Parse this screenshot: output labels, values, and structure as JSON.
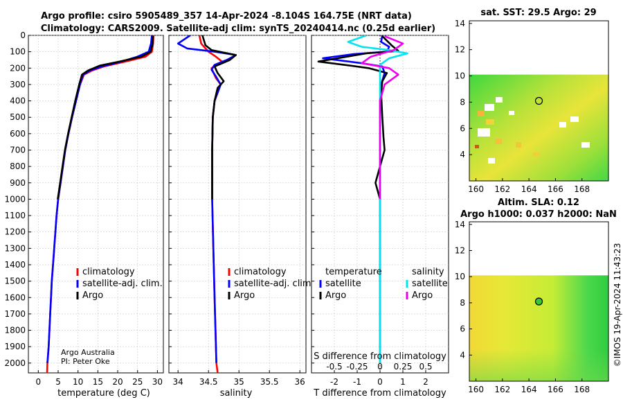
{
  "header": {
    "title_line1": "Argo profile: csiro 5905489_357 14-Apr-2024 -8.104S 164.75E (NRT data)",
    "title_line2": "Climatology: CARS2009. Satellite-adj clim: synTS_20240414.nc (0.25d earlier)",
    "credit_line1": "Argo Australia",
    "credit_line2": "PI: Peter Oke",
    "stamp": "©IMOS 19-Apr-2024 11:43:23"
  },
  "colors": {
    "climatology": "#ff0000",
    "satellite": "#0000ff",
    "argo": "#000000",
    "sat_salinity": "#00e5ee",
    "argo_salinity": "#ee00ee"
  },
  "chart_data": [
    {
      "type": "line",
      "name": "temperature",
      "xlabel": "temperature (deg C)",
      "ylabel": "",
      "xlim": [
        -2.5,
        31.5
      ],
      "ylim": [
        2060,
        0
      ],
      "xticks": [
        0,
        5,
        10,
        15,
        20,
        25,
        30
      ],
      "yticks": [
        0,
        100,
        200,
        300,
        400,
        500,
        600,
        700,
        800,
        900,
        1000,
        1100,
        1200,
        1300,
        1400,
        1500,
        1600,
        1700,
        1800,
        1900,
        2000
      ],
      "legend": [
        "climatology",
        "satellite-adj. clim.",
        "Argo"
      ],
      "series": [
        {
          "name": "climatology",
          "color": "#ff0000",
          "points": [
            [
              29.0,
              0
            ],
            [
              28.9,
              50
            ],
            [
              28.6,
              100
            ],
            [
              27.0,
              130
            ],
            [
              22.0,
              160
            ],
            [
              16.5,
              190
            ],
            [
              13.5,
              215
            ],
            [
              11.5,
              240
            ],
            [
              10.5,
              300
            ],
            [
              9.5,
              400
            ],
            [
              8.5,
              500
            ],
            [
              7.6,
              600
            ],
            [
              6.8,
              700
            ],
            [
              6.2,
              800
            ],
            [
              5.6,
              900
            ],
            [
              5.0,
              1000
            ],
            [
              4.6,
              1100
            ],
            [
              4.3,
              1200
            ],
            [
              4.0,
              1300
            ],
            [
              3.7,
              1400
            ],
            [
              3.4,
              1500
            ],
            [
              3.2,
              1600
            ],
            [
              3.0,
              1700
            ],
            [
              2.8,
              1800
            ],
            [
              2.6,
              1900
            ],
            [
              2.3,
              2000
            ],
            [
              2.2,
              2060
            ]
          ]
        },
        {
          "name": "satellite-adj. clim.",
          "color": "#0000ff",
          "points": [
            [
              28.6,
              0
            ],
            [
              28.4,
              50
            ],
            [
              27.8,
              100
            ],
            [
              25.0,
              130
            ],
            [
              21.0,
              160
            ],
            [
              16.0,
              190
            ],
            [
              13.0,
              215
            ],
            [
              11.3,
              240
            ],
            [
              10.5,
              300
            ],
            [
              9.5,
              400
            ],
            [
              8.5,
              500
            ],
            [
              7.6,
              600
            ],
            [
              6.8,
              700
            ],
            [
              6.2,
              800
            ],
            [
              5.6,
              900
            ],
            [
              5.0,
              1000
            ],
            [
              4.6,
              1100
            ],
            [
              4.3,
              1200
            ],
            [
              4.0,
              1300
            ],
            [
              3.7,
              1400
            ],
            [
              3.4,
              1500
            ],
            [
              3.2,
              1600
            ],
            [
              3.0,
              1700
            ],
            [
              2.8,
              1800
            ],
            [
              2.6,
              1900
            ],
            [
              2.3,
              2000
            ]
          ]
        },
        {
          "name": "Argo",
          "color": "#000000",
          "points": [
            [
              28.9,
              5
            ],
            [
              28.8,
              50
            ],
            [
              28.3,
              100
            ],
            [
              26.0,
              130
            ],
            [
              20.5,
              160
            ],
            [
              15.5,
              185
            ],
            [
              12.5,
              215
            ],
            [
              11.0,
              240
            ],
            [
              10.3,
              300
            ],
            [
              9.3,
              400
            ],
            [
              8.4,
              500
            ],
            [
              7.5,
              600
            ],
            [
              6.7,
              700
            ],
            [
              6.1,
              800
            ],
            [
              5.5,
              900
            ],
            [
              4.9,
              1000
            ]
          ]
        }
      ]
    },
    {
      "type": "line",
      "name": "salinity",
      "xlabel": "salinity",
      "ylabel": "",
      "xlim": [
        33.85,
        36.1
      ],
      "ylim": [
        2060,
        0
      ],
      "xticks": [
        34,
        34.5,
        35,
        35.5,
        36
      ],
      "legend": [
        "climatology",
        "satellite-adj. clim.",
        "Argo"
      ],
      "series": [
        {
          "name": "climatology",
          "color": "#ff0000",
          "points": [
            [
              34.35,
              0
            ],
            [
              34.38,
              50
            ],
            [
              34.5,
              100
            ],
            [
              34.62,
              130
            ],
            [
              34.72,
              160
            ],
            [
              34.55,
              200
            ],
            [
              34.62,
              260
            ],
            [
              34.7,
              300
            ],
            [
              34.6,
              400
            ],
            [
              34.57,
              500
            ],
            [
              34.56,
              700
            ],
            [
              34.56,
              1000
            ],
            [
              34.58,
              1300
            ],
            [
              34.6,
              1600
            ],
            [
              34.63,
              2000
            ],
            [
              34.65,
              2060
            ]
          ]
        },
        {
          "name": "satellite-adj. clim.",
          "color": "#0000ff",
          "points": [
            [
              34.2,
              0
            ],
            [
              34.0,
              50
            ],
            [
              34.15,
              80
            ],
            [
              34.6,
              100
            ],
            [
              34.95,
              120
            ],
            [
              34.8,
              150
            ],
            [
              34.6,
              180
            ],
            [
              34.55,
              210
            ],
            [
              34.62,
              250
            ],
            [
              34.7,
              300
            ],
            [
              34.6,
              400
            ],
            [
              34.57,
              500
            ],
            [
              34.56,
              700
            ],
            [
              34.56,
              1000
            ],
            [
              34.58,
              1300
            ],
            [
              34.6,
              1600
            ],
            [
              34.63,
              2000
            ]
          ]
        },
        {
          "name": "Argo",
          "color": "#000000",
          "points": [
            [
              34.4,
              0
            ],
            [
              34.45,
              60
            ],
            [
              34.55,
              90
            ],
            [
              34.95,
              120
            ],
            [
              34.85,
              150
            ],
            [
              34.6,
              190
            ],
            [
              34.65,
              230
            ],
            [
              34.75,
              280
            ],
            [
              34.65,
              320
            ],
            [
              34.6,
              400
            ],
            [
              34.57,
              500
            ],
            [
              34.56,
              700
            ],
            [
              34.56,
              1000
            ]
          ]
        }
      ]
    },
    {
      "type": "line",
      "name": "difference from climatology",
      "xlabel": "T difference from climatology",
      "xlabel_top": "S difference from climatology",
      "xlim": [
        -3.0,
        3.0
      ],
      "ylim": [
        2060,
        0
      ],
      "xticks": [
        -2,
        -1,
        0,
        1,
        2
      ],
      "xtick_labels": [
        "-2",
        "-1",
        "0",
        "1",
        "2"
      ],
      "xticks_salinity": [
        -0.5,
        -0.25,
        0,
        0.25,
        0.5
      ],
      "xtick_labels_salinity": [
        "-0.5",
        "-0.25",
        "0",
        "0.25",
        "0.5"
      ],
      "legend_temperature_title": "temperature",
      "legend_salinity_title": "salinity",
      "legend_temperature": [
        "satellite",
        "Argo"
      ],
      "legend_salinity": [
        "satellite",
        "Argo"
      ],
      "series": [
        {
          "name": "T satellite",
          "color": "#0000ff",
          "points": [
            [
              0.1,
              0
            ],
            [
              0.05,
              40
            ],
            [
              0.4,
              70
            ],
            [
              0.3,
              100
            ],
            [
              -1.2,
              115
            ],
            [
              -2.5,
              140
            ],
            [
              -0.8,
              170
            ],
            [
              0.1,
              190
            ],
            [
              0.2,
              230
            ],
            [
              0.05,
              300
            ],
            [
              0.0,
              400
            ],
            [
              0.0,
              2000
            ]
          ]
        },
        {
          "name": "T Argo",
          "color": "#000000",
          "points": [
            [
              0.1,
              5
            ],
            [
              0.5,
              60
            ],
            [
              0.8,
              95
            ],
            [
              -0.6,
              110
            ],
            [
              -2.7,
              160
            ],
            [
              -1.3,
              185
            ],
            [
              -0.5,
              200
            ],
            [
              0.3,
              230
            ],
            [
              0.1,
              280
            ],
            [
              0.05,
              350
            ],
            [
              0.1,
              500
            ],
            [
              0.15,
              620
            ],
            [
              0.2,
              700
            ],
            [
              0.0,
              800
            ],
            [
              -0.2,
              900
            ],
            [
              0.0,
              1000
            ]
          ]
        },
        {
          "name": "S satellite",
          "color": "#00e5ee",
          "points": [
            [
              -0.15,
              0
            ],
            [
              -0.35,
              40
            ],
            [
              -0.2,
              70
            ],
            [
              0.1,
              90
            ],
            [
              0.3,
              110
            ],
            [
              0.1,
              140
            ],
            [
              0.0,
              180
            ],
            [
              0.0,
              250
            ],
            [
              0.0,
              400
            ],
            [
              0.0,
              2000
            ]
          ]
        },
        {
          "name": "S Argo",
          "color": "#ee00ee",
          "points": [
            [
              0.05,
              5
            ],
            [
              0.25,
              50
            ],
            [
              0.15,
              90
            ],
            [
              -0.1,
              130
            ],
            [
              -0.2,
              170
            ],
            [
              0.1,
              200
            ],
            [
              0.2,
              240
            ],
            [
              0.05,
              300
            ],
            [
              0.0,
              400
            ],
            [
              0.0,
              1000
            ]
          ]
        }
      ]
    },
    {
      "type": "heatmap",
      "name": "sat SST map",
      "title": "sat. SST: 29.5 Argo: 29",
      "xlim": [
        159.5,
        170.0
      ],
      "ylim": [
        2.0,
        14.2
      ],
      "xticks": [
        160,
        162,
        164,
        166,
        168
      ],
      "yticks": [
        4,
        6,
        8,
        10,
        12,
        14
      ],
      "data_top_lat": 10.1,
      "argo_position": [
        164.75,
        8.1
      ]
    },
    {
      "type": "heatmap",
      "name": "altimetry SLA map",
      "title": "Altim. SLA: 0.12",
      "subtitle": "Argo h1000: 0.037 h2000: NaN",
      "xlim": [
        159.5,
        170.0
      ],
      "ylim": [
        2.0,
        14.2
      ],
      "xticks": [
        160,
        162,
        164,
        166,
        168
      ],
      "yticks": [
        4,
        6,
        8,
        10,
        12,
        14
      ],
      "data_top_lat": 10.1,
      "argo_position": [
        164.75,
        8.1
      ]
    }
  ]
}
